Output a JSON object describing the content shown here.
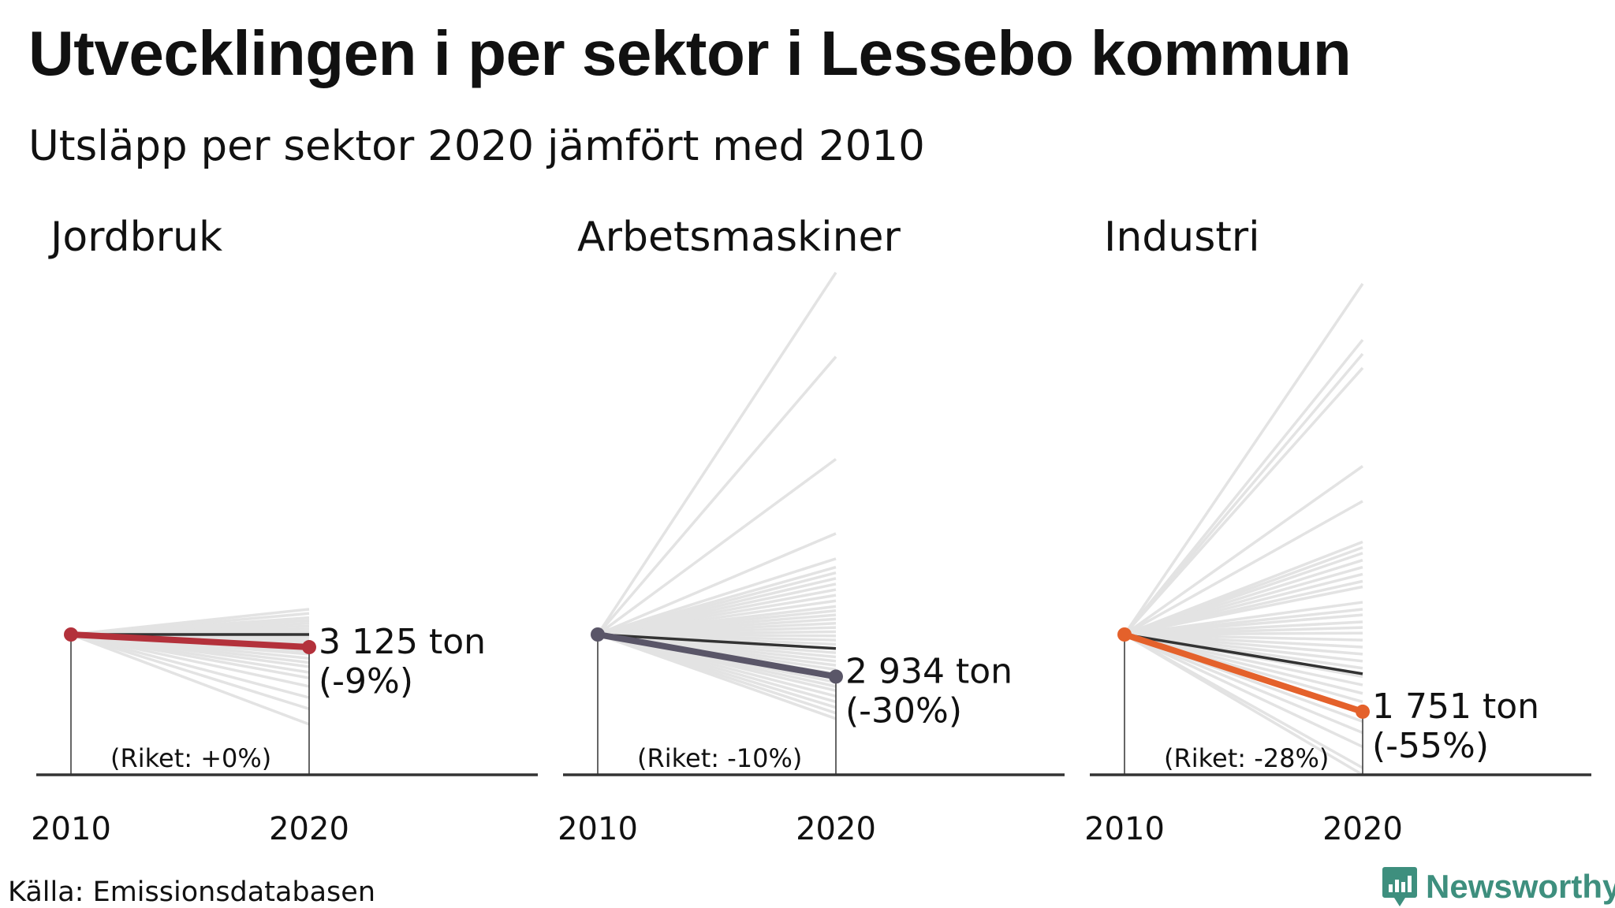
{
  "title": "Utvecklingen i per sektor i Lessebo kommun",
  "subtitle": "Utsläpp per sektor 2020 jämfört med 2010",
  "source": "Källa: Emissionsdatabasen",
  "logo_text": "Newsworthy",
  "chart_data": [
    {
      "type": "line",
      "title": "Jordbruk",
      "x": [
        "2010",
        "2020"
      ],
      "value_2020_label": "3 125 ton",
      "change_label": "(-9%)",
      "national_label": "(Riket: +0%)",
      "municipality_change_pct": -9,
      "national_change_pct": 0,
      "highlight_color": "#b3313b",
      "other_municipalities_change_pct": [
        18,
        15,
        12,
        10,
        8,
        6,
        4,
        2,
        0,
        -2,
        -4,
        -6,
        -8,
        -10,
        -12,
        -14,
        -17,
        -20,
        -23,
        -27,
        -31,
        -37,
        -45,
        -53,
        -64
      ]
    },
    {
      "type": "line",
      "title": "Arbetsmaskiner",
      "x": [
        "2010",
        "2020"
      ],
      "value_2020_label": "2 934 ton",
      "change_label": "(-30%)",
      "national_label": "(Riket: -10%)",
      "municipality_change_pct": -30,
      "national_change_pct": -10,
      "highlight_color": "#5a5668",
      "other_municipalities_change_pct": [
        258,
        198,
        125,
        72,
        54,
        48,
        44,
        40,
        36,
        32,
        28,
        24,
        20,
        17,
        14,
        11,
        8,
        5,
        2,
        -1,
        -4,
        -7,
        -10,
        -13,
        -16,
        -19,
        -22,
        -25,
        -28,
        -31,
        -34,
        -37,
        -40,
        -44,
        -48,
        -52,
        -56,
        -60
      ]
    },
    {
      "type": "line",
      "title": "Industri",
      "x": [
        "2010",
        "2020"
      ],
      "value_2020_label": "1 751 ton",
      "change_label": "(-55%)",
      "national_label": "(Riket: -28%)",
      "municipality_change_pct": -55,
      "national_change_pct": -28,
      "highlight_color": "#e4612b",
      "other_municipalities_change_pct": [
        250,
        210,
        200,
        190,
        120,
        95,
        66,
        62,
        58,
        53,
        48,
        43,
        38,
        34,
        23,
        18,
        14,
        9,
        5,
        1,
        -4,
        -9,
        -14,
        -19,
        -24,
        -30,
        -36,
        -42,
        -48,
        -55,
        -62,
        -70,
        -80,
        -95,
        -100
      ]
    }
  ]
}
